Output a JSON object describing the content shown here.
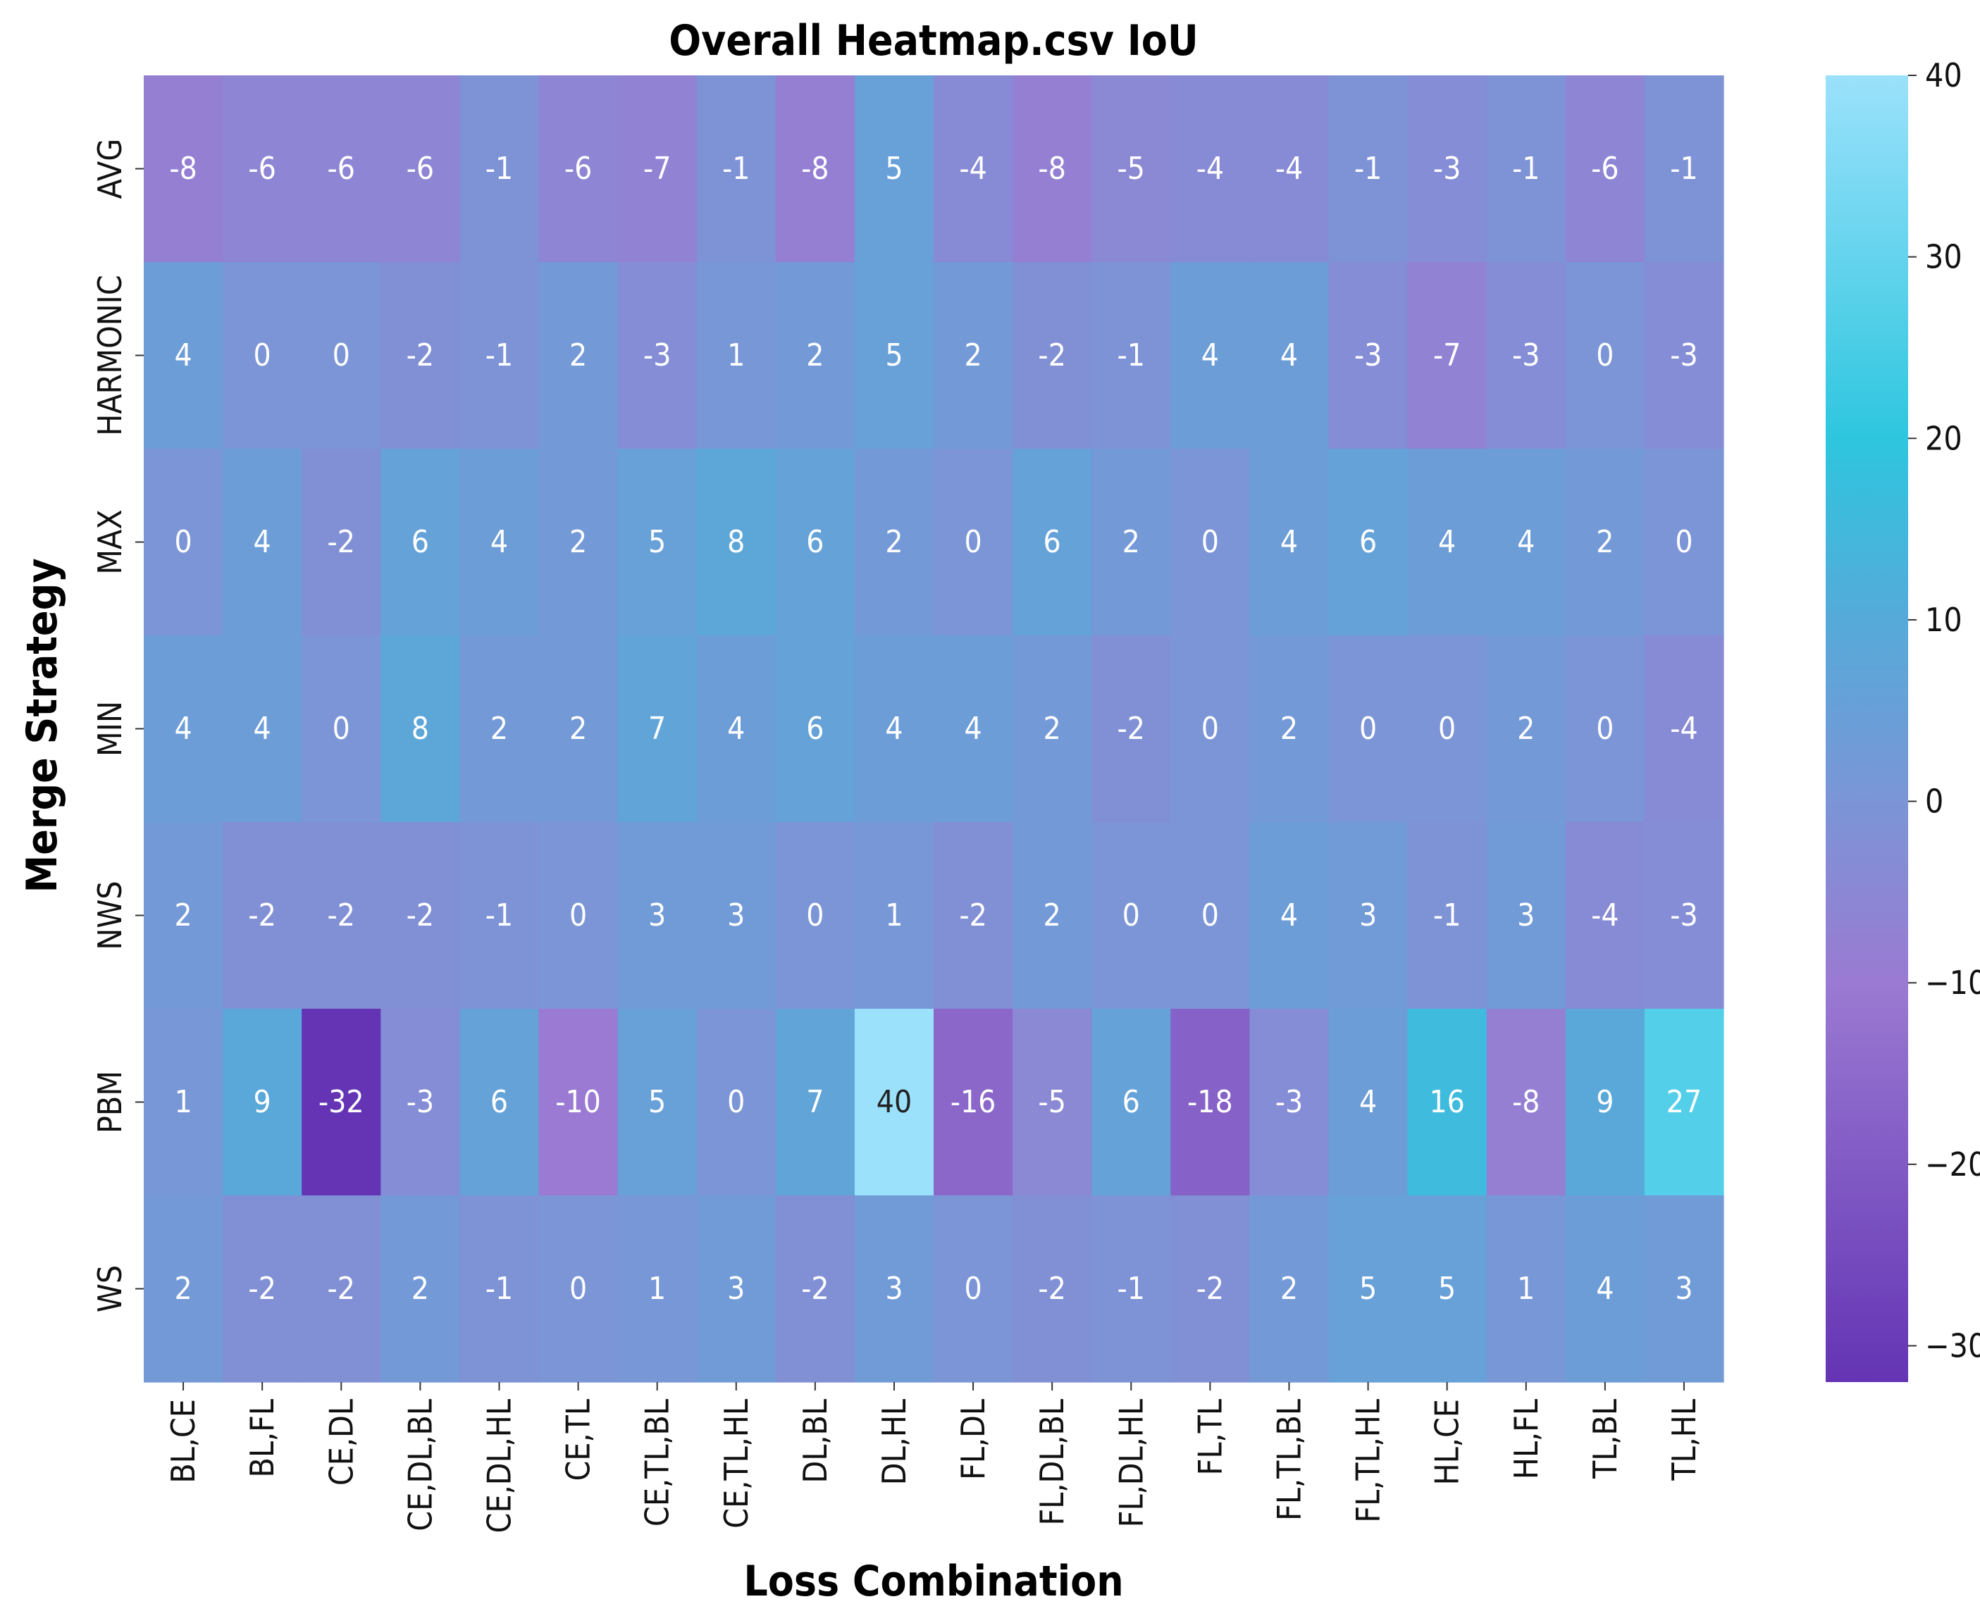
{
  "chart_data": {
    "type": "heatmap",
    "title": "Overall Heatmap.csv IoU",
    "xlabel": "Loss Combination",
    "ylabel": "Merge Strategy",
    "x_categories": [
      "BL,CE",
      "BL,FL",
      "CE,DL",
      "CE,DL,BL",
      "CE,DL,HL",
      "CE,TL",
      "CE,TL,BL",
      "CE,TL,HL",
      "DL,BL",
      "DL,HL",
      "FL,DL",
      "FL,DL,BL",
      "FL,DL,HL",
      "FL,TL",
      "FL,TL,BL",
      "FL,TL,HL",
      "HL,CE",
      "HL,FL",
      "TL,BL",
      "TL,HL"
    ],
    "y_categories": [
      "AVG",
      "HARMONIC",
      "MAX",
      "MIN",
      "NWS",
      "PBM",
      "WS"
    ],
    "values": [
      [
        -8,
        -6,
        -6,
        -6,
        -1,
        -6,
        -7,
        -1,
        -8,
        5,
        -4,
        -8,
        -5,
        -4,
        -4,
        -1,
        -3,
        -1,
        -6,
        -1
      ],
      [
        4,
        0,
        0,
        -2,
        -1,
        2,
        -3,
        1,
        2,
        5,
        2,
        -2,
        -1,
        4,
        4,
        -3,
        -7,
        -3,
        0,
        -3
      ],
      [
        0,
        4,
        -2,
        6,
        4,
        2,
        5,
        8,
        6,
        2,
        0,
        6,
        2,
        0,
        4,
        6,
        4,
        4,
        2,
        0
      ],
      [
        4,
        4,
        0,
        8,
        2,
        2,
        7,
        4,
        6,
        4,
        4,
        2,
        -2,
        0,
        2,
        0,
        0,
        2,
        0,
        -4
      ],
      [
        2,
        -2,
        -2,
        -2,
        -1,
        0,
        3,
        3,
        0,
        1,
        -2,
        2,
        0,
        0,
        4,
        3,
        -1,
        3,
        -4,
        -3
      ],
      [
        1,
        9,
        -32,
        -3,
        6,
        -10,
        5,
        0,
        7,
        40,
        -16,
        -5,
        6,
        -18,
        -3,
        4,
        16,
        -8,
        9,
        27
      ],
      [
        2,
        -2,
        -2,
        2,
        -1,
        0,
        1,
        3,
        -2,
        3,
        0,
        -2,
        -1,
        -2,
        2,
        5,
        5,
        1,
        4,
        3
      ]
    ],
    "colorbar": {
      "min": -32,
      "max": 40,
      "ticks": [
        40,
        30,
        20,
        10,
        0,
        -10,
        -20,
        -30
      ],
      "tick_labels": [
        "40",
        "30",
        "20",
        "10",
        "0",
        "−10",
        "−20",
        "−30"
      ]
    },
    "colors": {
      "low": "#6434b4",
      "mid_low": "#9a7ad2",
      "center": "#7b95d6",
      "mid_high": "#55aad9",
      "high_1": "#2ec6df",
      "high": "#9be1fb"
    }
  }
}
